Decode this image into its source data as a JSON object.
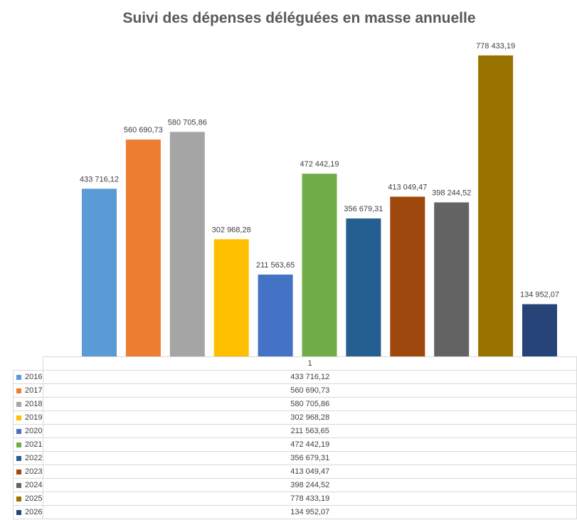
{
  "chart_data": {
    "type": "bar",
    "title": "Suivi des dépenses déléguées en masse annuelle",
    "category": "1",
    "ylim": [
      0,
      850000
    ],
    "series": [
      {
        "name": "2016",
        "value": 433716.12,
        "label": "433 716,12",
        "color": "#5B9BD5"
      },
      {
        "name": "2017",
        "value": 560690.73,
        "label": "560 690,73",
        "color": "#ED7D31"
      },
      {
        "name": "2018",
        "value": 580705.86,
        "label": "580 705,86",
        "color": "#A5A5A5"
      },
      {
        "name": "2019",
        "value": 302968.28,
        "label": "302 968,28",
        "color": "#FFC000"
      },
      {
        "name": "2020",
        "value": 211563.65,
        "label": "211 563,65",
        "color": "#4472C4"
      },
      {
        "name": "2021",
        "value": 472442.19,
        "label": "472 442,19",
        "color": "#70AD47"
      },
      {
        "name": "2022",
        "value": 356679.31,
        "label": "356 679,31",
        "color": "#255E91"
      },
      {
        "name": "2023",
        "value": 413049.47,
        "label": "413 049,47",
        "color": "#9E480E"
      },
      {
        "name": "2024",
        "value": 398244.52,
        "label": "398 244,52",
        "color": "#636363"
      },
      {
        "name": "2025",
        "value": 778433.19,
        "label": "778 433,19",
        "color": "#997300"
      },
      {
        "name": "2026",
        "value": 134952.07,
        "label": "134 952,07",
        "color": "#264478"
      }
    ]
  }
}
